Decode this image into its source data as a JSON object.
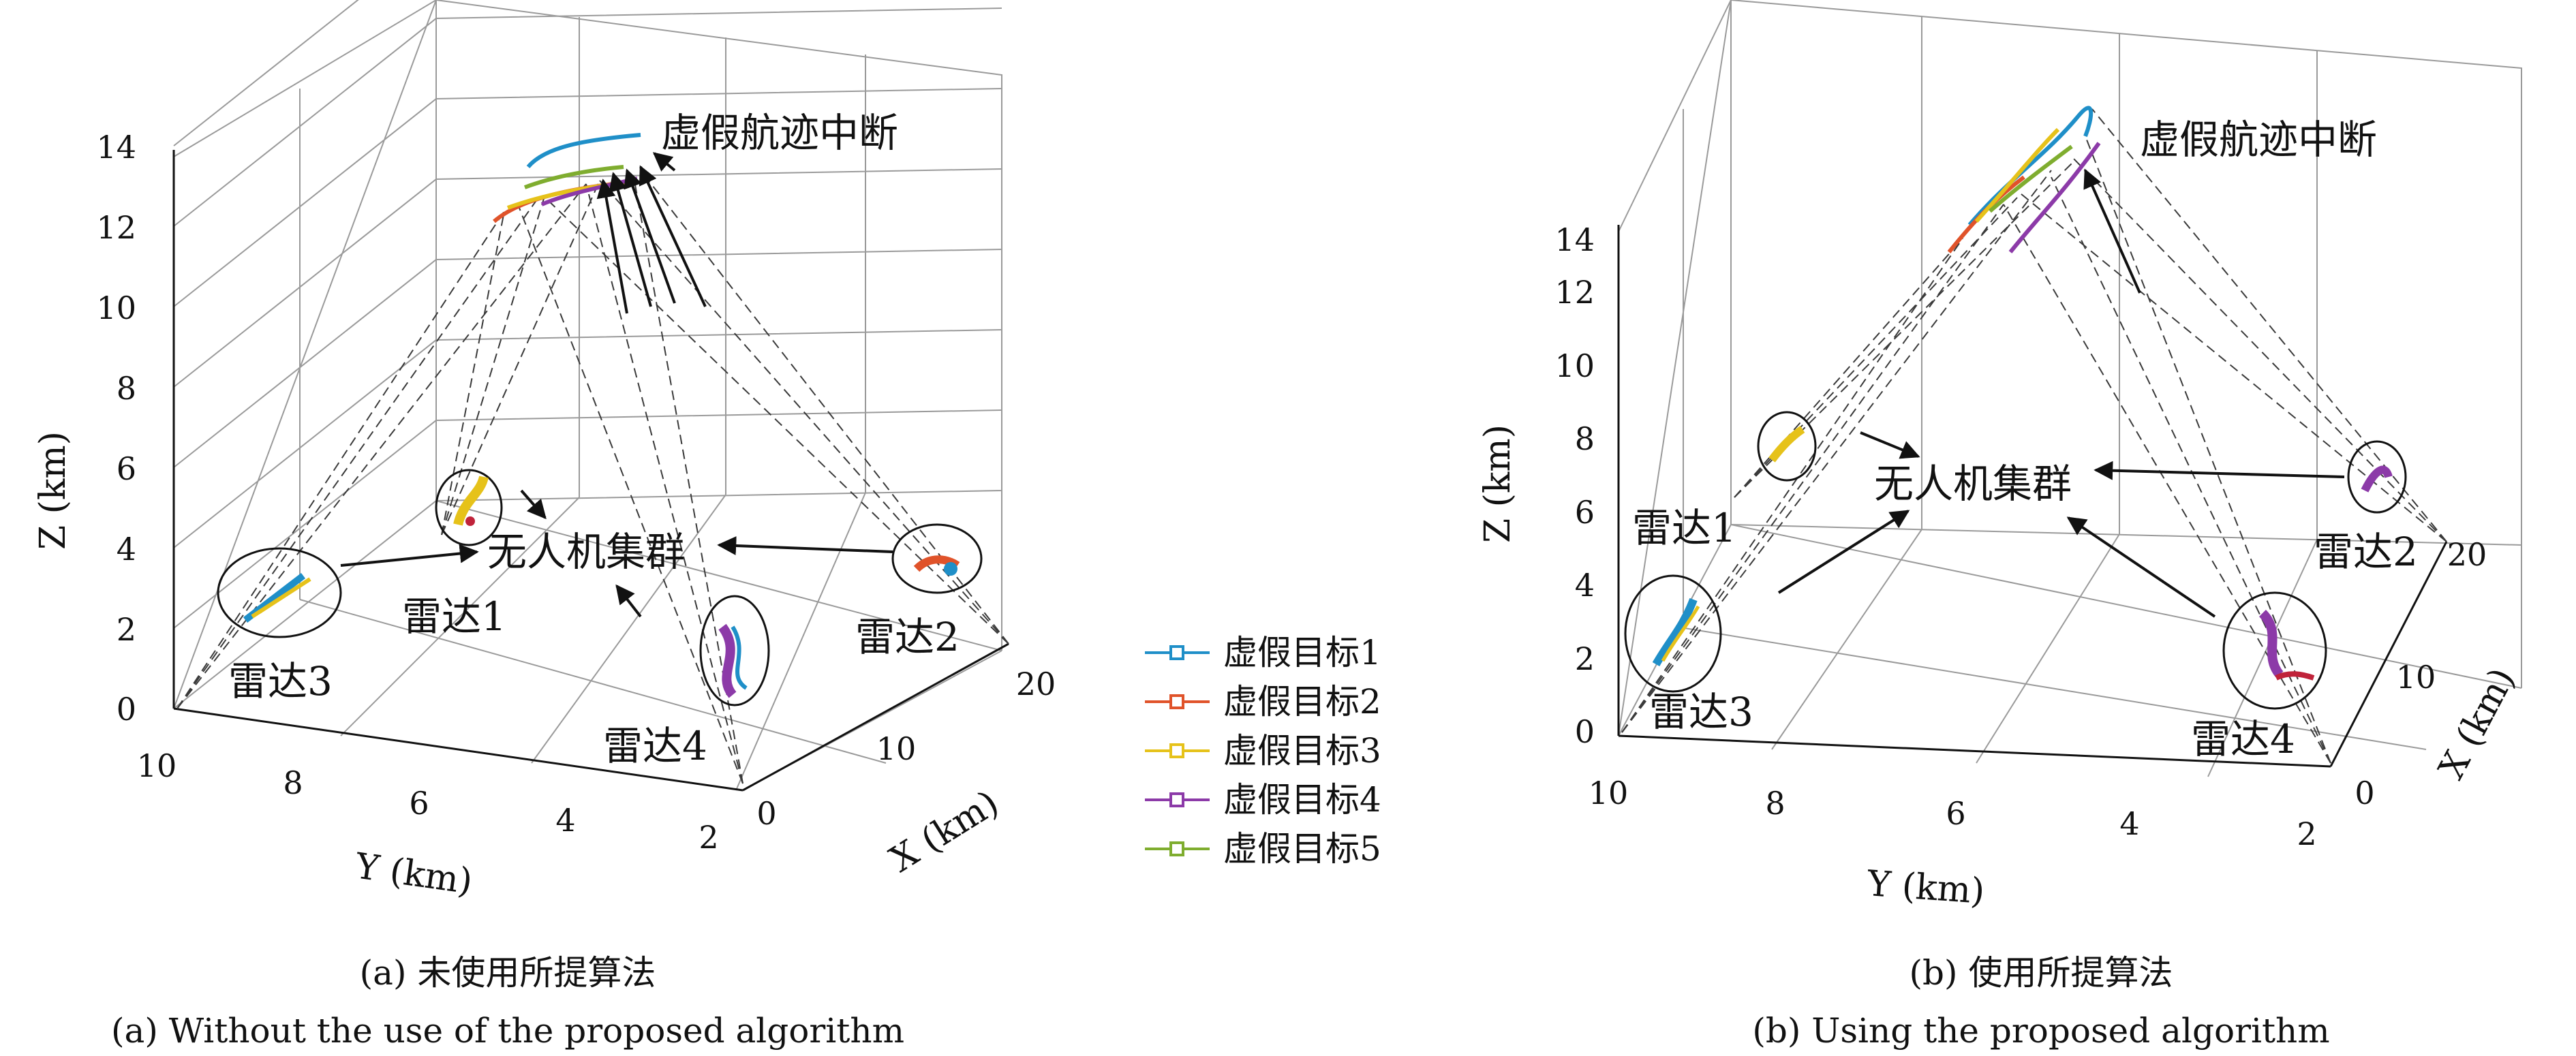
{
  "chart_data": [
    {
      "type": "scatter3d",
      "panel": "a",
      "xlabel": "X (km)",
      "ylabel": "Y (km)",
      "zlabel": "Z (km)",
      "xticks": [
        "0",
        "10",
        "20"
      ],
      "yticks": [
        "10",
        "8",
        "6",
        "4",
        "2"
      ],
      "zticks": [
        "0",
        "2",
        "4",
        "6",
        "8",
        "10",
        "12",
        "14"
      ],
      "xlim": [
        0,
        20
      ],
      "ylim": [
        2,
        10
      ],
      "zlim": [
        0,
        14
      ],
      "radars": [
        {
          "label": "雷达1"
        },
        {
          "label": "雷达2"
        },
        {
          "label": "雷达3"
        },
        {
          "label": "雷达4"
        }
      ],
      "annotations": {
        "interrupt": "虚假航迹中断",
        "swarm": "无人机集群"
      },
      "caption_cn": "(a) 未使用所提算法",
      "caption_en": "(a) Without the use of the proposed algorithm"
    },
    {
      "type": "scatter3d",
      "panel": "b",
      "xlabel": "X (km)",
      "ylabel": "Y (km)",
      "zlabel": "Z (km)",
      "xticks": [
        "0",
        "10",
        "20"
      ],
      "yticks": [
        "10",
        "8",
        "6",
        "4",
        "2"
      ],
      "zticks": [
        "0",
        "2",
        "4",
        "6",
        "8",
        "10",
        "12",
        "14"
      ],
      "xlim": [
        0,
        20
      ],
      "ylim": [
        2,
        10
      ],
      "zlim": [
        0,
        14
      ],
      "radars": [
        {
          "label": "雷达1"
        },
        {
          "label": "雷达2"
        },
        {
          "label": "雷达3"
        },
        {
          "label": "雷达4"
        }
      ],
      "annotations": {
        "interrupt": "虚假航迹中断",
        "swarm": "无人机集群"
      },
      "caption_cn": "(b) 使用所提算法",
      "caption_en": "(b) Using the proposed algorithm"
    }
  ],
  "legend": {
    "entries": [
      {
        "name": "虚假目标1",
        "color": "#1f8fc8"
      },
      {
        "name": "虚假目标2",
        "color": "#e0532a"
      },
      {
        "name": "虚假目标3",
        "color": "#e6c21a"
      },
      {
        "name": "虚假目标4",
        "color": "#8c3aa8"
      },
      {
        "name": "虚假目标5",
        "color": "#7fad2f"
      }
    ]
  }
}
